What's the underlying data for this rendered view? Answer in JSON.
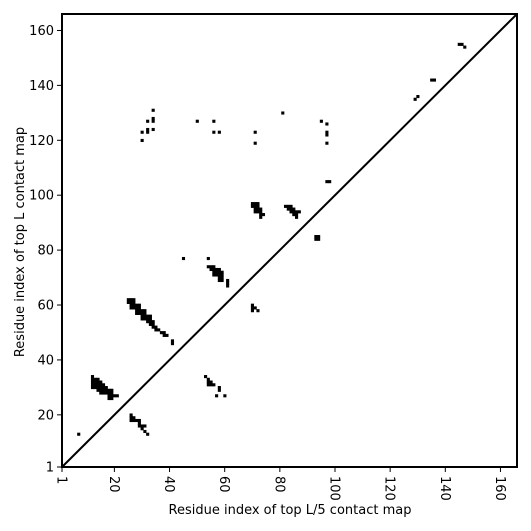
{
  "chart_data": {
    "type": "heatmap",
    "title": "",
    "xlabel": "Residue index of top L/5 contact map",
    "ylabel": "Residue index of top L contact map",
    "xlim": [
      1,
      166
    ],
    "ylim": [
      1,
      166
    ],
    "x_ticks": [
      1,
      20,
      40,
      60,
      80,
      100,
      120,
      140,
      160
    ],
    "x_tick_labels": [
      "1",
      "20",
      "40",
      "60",
      "80",
      "100",
      "120",
      "140",
      "160"
    ],
    "y_ticks": [
      1,
      20,
      40,
      60,
      80,
      100,
      120,
      140,
      160
    ],
    "y_tick_labels": [
      "1",
      "20",
      "40",
      "60",
      "80",
      "100",
      "120",
      "140",
      "160"
    ],
    "x_tick_label_rotation": -90,
    "grid": false,
    "legend": "none",
    "diagonal_line": {
      "from": [
        1,
        1
      ],
      "to": [
        166,
        166
      ],
      "color": "#000000"
    },
    "cell_color": "#000000",
    "background_color": "#ffffff",
    "cells_upper_top_L5": [
      [
        145,
        155
      ],
      [
        146,
        155
      ],
      [
        147,
        154
      ],
      [
        135,
        142
      ],
      [
        136,
        142
      ],
      [
        129,
        135
      ],
      [
        130,
        136
      ],
      [
        81,
        130
      ],
      [
        95,
        127
      ],
      [
        97,
        126
      ],
      [
        97,
        123
      ],
      [
        97,
        122
      ],
      [
        97,
        119
      ],
      [
        97,
        105
      ],
      [
        98,
        105
      ],
      [
        82,
        96
      ],
      [
        83,
        96
      ],
      [
        84,
        96
      ],
      [
        83,
        95
      ],
      [
        84,
        95
      ],
      [
        85,
        95
      ],
      [
        84,
        94
      ],
      [
        85,
        94
      ],
      [
        86,
        94
      ],
      [
        87,
        94
      ],
      [
        85,
        93
      ],
      [
        86,
        93
      ],
      [
        86,
        92
      ],
      [
        93,
        85
      ],
      [
        94,
        85
      ],
      [
        93,
        84
      ],
      [
        94,
        84
      ]
    ],
    "cells_lower_top_L": [
      [
        7,
        13
      ],
      [
        12,
        34
      ],
      [
        12,
        33
      ],
      [
        13,
        33
      ],
      [
        14,
        33
      ],
      [
        12,
        32
      ],
      [
        13,
        32
      ],
      [
        14,
        32
      ],
      [
        15,
        32
      ],
      [
        12,
        31
      ],
      [
        13,
        31
      ],
      [
        14,
        31
      ],
      [
        15,
        31
      ],
      [
        16,
        31
      ],
      [
        12,
        30
      ],
      [
        13,
        30
      ],
      [
        14,
        30
      ],
      [
        15,
        30
      ],
      [
        16,
        30
      ],
      [
        17,
        30
      ],
      [
        14,
        29
      ],
      [
        15,
        29
      ],
      [
        16,
        29
      ],
      [
        17,
        29
      ],
      [
        18,
        29
      ],
      [
        19,
        29
      ],
      [
        15,
        28
      ],
      [
        16,
        28
      ],
      [
        17,
        28
      ],
      [
        18,
        28
      ],
      [
        19,
        28
      ],
      [
        18,
        27
      ],
      [
        19,
        27
      ],
      [
        20,
        27
      ],
      [
        21,
        27
      ],
      [
        18,
        26
      ],
      [
        19,
        26
      ],
      [
        26,
        20
      ],
      [
        26,
        19
      ],
      [
        27,
        19
      ],
      [
        26,
        18
      ],
      [
        27,
        18
      ],
      [
        28,
        18
      ],
      [
        29,
        18
      ],
      [
        29,
        17
      ],
      [
        29,
        16
      ],
      [
        30,
        16
      ],
      [
        31,
        16
      ],
      [
        30,
        15
      ],
      [
        31,
        14
      ],
      [
        32,
        13
      ],
      [
        25,
        62
      ],
      [
        26,
        62
      ],
      [
        27,
        62
      ],
      [
        25,
        61
      ],
      [
        26,
        61
      ],
      [
        27,
        61
      ],
      [
        26,
        60
      ],
      [
        27,
        60
      ],
      [
        28,
        60
      ],
      [
        29,
        60
      ],
      [
        26,
        59
      ],
      [
        27,
        59
      ],
      [
        28,
        59
      ],
      [
        29,
        59
      ],
      [
        28,
        58
      ],
      [
        29,
        58
      ],
      [
        30,
        58
      ],
      [
        31,
        58
      ],
      [
        28,
        57
      ],
      [
        29,
        57
      ],
      [
        30,
        57
      ],
      [
        31,
        57
      ],
      [
        30,
        56
      ],
      [
        31,
        56
      ],
      [
        32,
        56
      ],
      [
        33,
        56
      ],
      [
        30,
        55
      ],
      [
        31,
        55
      ],
      [
        32,
        55
      ],
      [
        33,
        55
      ],
      [
        32,
        54
      ],
      [
        33,
        54
      ],
      [
        34,
        54
      ],
      [
        33,
        53
      ],
      [
        34,
        53
      ],
      [
        34,
        52
      ],
      [
        35,
        52
      ],
      [
        35,
        51
      ],
      [
        36,
        51
      ],
      [
        37,
        50
      ],
      [
        38,
        50
      ],
      [
        38,
        49
      ],
      [
        39,
        49
      ],
      [
        41,
        47
      ],
      [
        41,
        46
      ],
      [
        45,
        77
      ],
      [
        54,
        77
      ],
      [
        54,
        74
      ],
      [
        55,
        74
      ],
      [
        56,
        74
      ],
      [
        55,
        73
      ],
      [
        56,
        73
      ],
      [
        57,
        73
      ],
      [
        58,
        73
      ],
      [
        56,
        72
      ],
      [
        57,
        72
      ],
      [
        58,
        72
      ],
      [
        59,
        72
      ],
      [
        56,
        71
      ],
      [
        57,
        71
      ],
      [
        58,
        71
      ],
      [
        59,
        71
      ],
      [
        58,
        70
      ],
      [
        59,
        70
      ],
      [
        58,
        69
      ],
      [
        59,
        69
      ],
      [
        61,
        69
      ],
      [
        61,
        68
      ],
      [
        61,
        67
      ],
      [
        53,
        34
      ],
      [
        54,
        33
      ],
      [
        54,
        32
      ],
      [
        55,
        32
      ],
      [
        54,
        31
      ],
      [
        55,
        31
      ],
      [
        56,
        31
      ],
      [
        58,
        30
      ],
      [
        58,
        29
      ],
      [
        57,
        27
      ],
      [
        60,
        27
      ],
      [
        70,
        60
      ],
      [
        70,
        59
      ],
      [
        71,
        59
      ],
      [
        70,
        58
      ],
      [
        72,
        58
      ]
    ],
    "cells_upper_top_L": [
      [
        30,
        123
      ],
      [
        30,
        120
      ],
      [
        32,
        127
      ],
      [
        32,
        124
      ],
      [
        32,
        123
      ],
      [
        34,
        131
      ],
      [
        34,
        128
      ],
      [
        34,
        127
      ],
      [
        34,
        124
      ],
      [
        50,
        127
      ],
      [
        56,
        127
      ],
      [
        56,
        123
      ],
      [
        58,
        123
      ],
      [
        71,
        123
      ],
      [
        71,
        119
      ],
      [
        70,
        97
      ],
      [
        71,
        97
      ],
      [
        72,
        97
      ],
      [
        70,
        96
      ],
      [
        71,
        96
      ],
      [
        72,
        96
      ],
      [
        71,
        95
      ],
      [
        72,
        95
      ],
      [
        73,
        95
      ],
      [
        71,
        94
      ],
      [
        72,
        94
      ],
      [
        73,
        94
      ],
      [
        73,
        93
      ],
      [
        74,
        93
      ],
      [
        73,
        92
      ]
    ]
  }
}
